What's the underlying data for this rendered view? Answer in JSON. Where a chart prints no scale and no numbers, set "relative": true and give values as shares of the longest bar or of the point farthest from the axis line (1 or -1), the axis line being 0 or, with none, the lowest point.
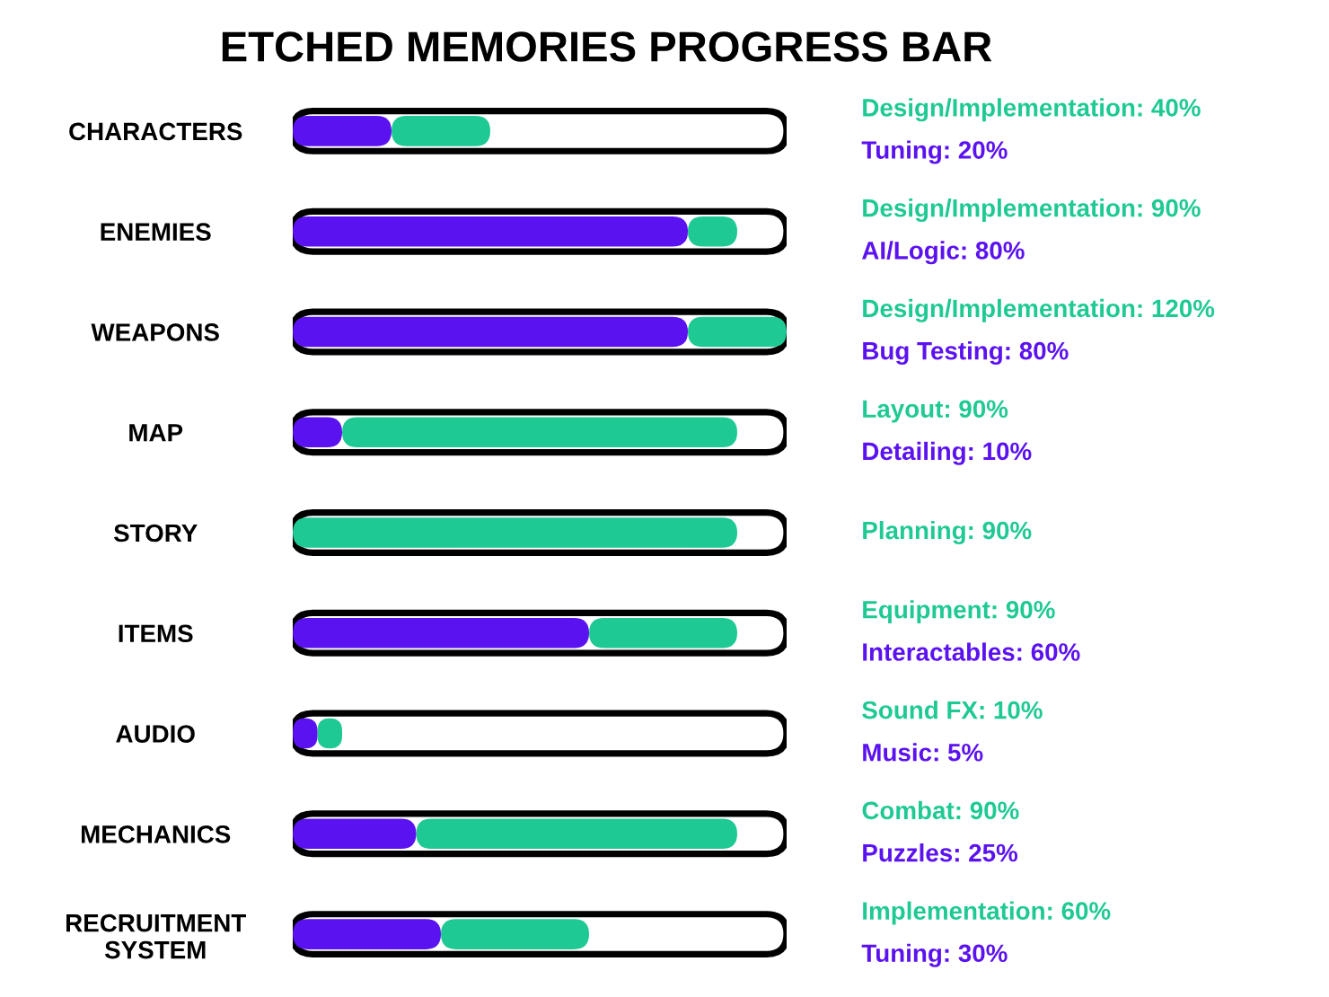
{
  "chart_data": {
    "type": "bar",
    "orientation": "horizontal",
    "stacked": true,
    "relative": true,
    "title": "ETCHED MEMORIES PROGRESS BAR",
    "categories": [
      "CHARACTERS",
      "ENEMIES",
      "WEAPONS",
      "MAP",
      "STORY",
      "ITEMS",
      "AUDIO",
      "MECHANICS",
      "RECRUITMENT\nSYSTEM"
    ],
    "series": [
      {
        "color": "#5b12f0",
        "values": [
          0.2,
          0.8,
          0.8,
          0.1,
          null,
          0.6,
          0.05,
          0.25,
          0.3
        ]
      },
      {
        "color": "#1fc994",
        "values": [
          0.2,
          0.1,
          0.2,
          0.8,
          0.9,
          0.3,
          0.05,
          0.65,
          0.3
        ]
      }
    ],
    "annotations": [
      "Design/Implementation: 40%",
      "Tuning: 20%",
      "Design/Implementation: 90%",
      "AI/Logic: 80%",
      "Design/Implementation: 120%",
      "Bug Testing: 80%",
      "Layout: 90%",
      "Detailing: 10%",
      "Planning: 90%",
      "Equipment: 90%",
      "Interactables: 60%",
      "Sound FX: 10%",
      "Music: 5%",
      "Combat: 90%",
      "Puzzles: 25%",
      "Implementation: 60%",
      "Tuning: 30%"
    ],
    "tick_labels": "y",
    "grid": false,
    "legend": false
  }
}
